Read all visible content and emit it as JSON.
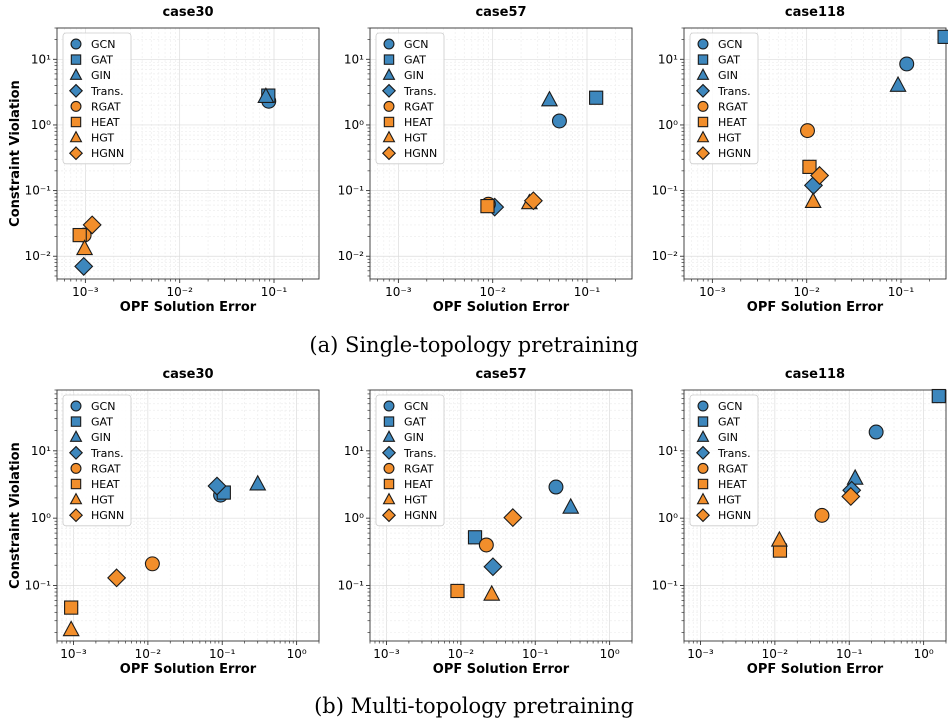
{
  "figure": {
    "caption_a": "(a) Single-topology pretraining",
    "caption_b": "(b) Multi-topology pretraining"
  },
  "colors": {
    "blue": "#3d87bd",
    "orange": "#f28e2b",
    "edge": "#1b1b1b"
  },
  "legend": [
    {
      "name": "GCN",
      "marker": "circle",
      "color": "blue"
    },
    {
      "name": "GAT",
      "marker": "square",
      "color": "blue"
    },
    {
      "name": "GIN",
      "marker": "triangle",
      "color": "blue"
    },
    {
      "name": "Trans.",
      "marker": "diamond",
      "color": "blue"
    },
    {
      "name": "RGAT",
      "marker": "circle",
      "color": "orange"
    },
    {
      "name": "HEAT",
      "marker": "square",
      "color": "orange"
    },
    {
      "name": "HGT",
      "marker": "triangle",
      "color": "orange"
    },
    {
      "name": "HGNN",
      "marker": "diamond",
      "color": "orange"
    }
  ],
  "chart_data": [
    {
      "type": "scatter",
      "group": "a",
      "title": "case30",
      "xlabel": "OPF Solution Error",
      "ylabel": "Constraint Violation",
      "xscale": "log",
      "yscale": "log",
      "xlim": [
        0.0005,
        0.3
      ],
      "ylim": [
        0.0045,
        30
      ],
      "xticks": [
        0.001,
        0.01,
        0.1
      ],
      "xtick_labels": [
        "10⁻³",
        "10⁻²",
        "10⁻¹"
      ],
      "yticks": [
        0.01,
        0.1,
        1,
        10
      ],
      "ytick_labels": [
        "10⁻²",
        "10⁻¹",
        "10⁰",
        "10¹"
      ],
      "legend_position": "top-left",
      "grid": true,
      "points": [
        {
          "name": "GCN",
          "x": 0.088,
          "y": 2.3
        },
        {
          "name": "GAT",
          "x": 0.087,
          "y": 2.8
        },
        {
          "name": "GIN",
          "x": 0.082,
          "y": 2.7
        },
        {
          "name": "Trans.",
          "x": 0.00096,
          "y": 0.007
        },
        {
          "name": "RGAT",
          "x": 0.00097,
          "y": 0.021
        },
        {
          "name": "HEAT",
          "x": 0.00087,
          "y": 0.021
        },
        {
          "name": "HGT",
          "x": 0.00098,
          "y": 0.013
        },
        {
          "name": "HGNN",
          "x": 0.00118,
          "y": 0.03
        }
      ]
    },
    {
      "type": "scatter",
      "group": "a",
      "title": "case57",
      "xlabel": "OPF Solution Error",
      "ylabel": "",
      "xscale": "log",
      "yscale": "log",
      "xlim": [
        0.0005,
        0.3
      ],
      "ylim": [
        0.0045,
        30
      ],
      "xticks": [
        0.001,
        0.01,
        0.1
      ],
      "xtick_labels": [
        "10⁻³",
        "10⁻²",
        "10⁻¹"
      ],
      "yticks": [
        0.01,
        0.1,
        1,
        10
      ],
      "ytick_labels": [
        "10⁻²",
        "10⁻¹",
        "10⁰",
        "10¹"
      ],
      "legend_position": "top-left",
      "grid": true,
      "points": [
        {
          "name": "GCN",
          "x": 0.051,
          "y": 1.15
        },
        {
          "name": "GAT",
          "x": 0.125,
          "y": 2.6
        },
        {
          "name": "GIN",
          "x": 0.04,
          "y": 2.4
        },
        {
          "name": "Trans.",
          "x": 0.0105,
          "y": 0.056
        },
        {
          "name": "RGAT",
          "x": 0.009,
          "y": 0.062
        },
        {
          "name": "HEAT",
          "x": 0.0088,
          "y": 0.058
        },
        {
          "name": "HGT",
          "x": 0.0245,
          "y": 0.065
        },
        {
          "name": "HGNN",
          "x": 0.027,
          "y": 0.07
        }
      ]
    },
    {
      "type": "scatter",
      "group": "a",
      "title": "case118",
      "xlabel": "OPF Solution Error",
      "ylabel": "",
      "xscale": "log",
      "yscale": "log",
      "xlim": [
        0.0005,
        0.3
      ],
      "ylim": [
        0.0045,
        30
      ],
      "xticks": [
        0.001,
        0.01,
        0.1
      ],
      "xtick_labels": [
        "10⁻³",
        "10⁻²",
        "10⁻¹"
      ],
      "yticks": [
        0.01,
        0.1,
        1,
        10
      ],
      "ytick_labels": [
        "10⁻²",
        "10⁻¹",
        "10⁰",
        "10¹"
      ],
      "legend_position": "top-left",
      "grid": true,
      "points": [
        {
          "name": "GCN",
          "x": 0.115,
          "y": 8.5
        },
        {
          "name": "GAT",
          "x": 0.29,
          "y": 22
        },
        {
          "name": "GIN",
          "x": 0.093,
          "y": 4.0
        },
        {
          "name": "Trans.",
          "x": 0.0118,
          "y": 0.12
        },
        {
          "name": "RGAT",
          "x": 0.0102,
          "y": 0.82
        },
        {
          "name": "HEAT",
          "x": 0.0107,
          "y": 0.23
        },
        {
          "name": "HGT",
          "x": 0.0117,
          "y": 0.068
        },
        {
          "name": "HGNN",
          "x": 0.0137,
          "y": 0.17
        }
      ]
    },
    {
      "type": "scatter",
      "group": "b",
      "title": "case30",
      "xlabel": "OPF Solution Error",
      "ylabel": "Constraint Violation",
      "xscale": "log",
      "yscale": "log",
      "xlim": [
        0.0006,
        2
      ],
      "ylim": [
        0.015,
        80
      ],
      "xticks": [
        0.001,
        0.01,
        0.1,
        1
      ],
      "xtick_labels": [
        "10⁻³",
        "10⁻²",
        "10⁻¹",
        "10⁰"
      ],
      "yticks": [
        0.1,
        1,
        10
      ],
      "ytick_labels": [
        "10⁻¹",
        "10⁰",
        "10¹"
      ],
      "legend_position": "top-left",
      "grid": true,
      "points": [
        {
          "name": "GCN",
          "x": 0.095,
          "y": 2.2
        },
        {
          "name": "GAT",
          "x": 0.105,
          "y": 2.4
        },
        {
          "name": "GIN",
          "x": 0.3,
          "y": 3.2
        },
        {
          "name": "Trans.",
          "x": 0.085,
          "y": 3.0
        },
        {
          "name": "RGAT",
          "x": 0.0115,
          "y": 0.21
        },
        {
          "name": "HEAT",
          "x": 0.00093,
          "y": 0.047
        },
        {
          "name": "HGT",
          "x": 0.00093,
          "y": 0.022
        },
        {
          "name": "HGNN",
          "x": 0.0038,
          "y": 0.13
        }
      ]
    },
    {
      "type": "scatter",
      "group": "b",
      "title": "case57",
      "xlabel": "OPF Solution Error",
      "ylabel": "",
      "xscale": "log",
      "yscale": "log",
      "xlim": [
        0.0006,
        2
      ],
      "ylim": [
        0.015,
        80
      ],
      "xticks": [
        0.001,
        0.01,
        0.1,
        1
      ],
      "xtick_labels": [
        "10⁻³",
        "10⁻²",
        "10⁻¹",
        "10⁰"
      ],
      "yticks": [
        0.1,
        1,
        10
      ],
      "ytick_labels": [
        "10⁻¹",
        "10⁰",
        "10¹"
      ],
      "legend_position": "top-left",
      "grid": true,
      "points": [
        {
          "name": "GCN",
          "x": 0.19,
          "y": 2.9
        },
        {
          "name": "GAT",
          "x": 0.0155,
          "y": 0.52
        },
        {
          "name": "GIN",
          "x": 0.3,
          "y": 1.45
        },
        {
          "name": "Trans.",
          "x": 0.027,
          "y": 0.19
        },
        {
          "name": "RGAT",
          "x": 0.022,
          "y": 0.4
        },
        {
          "name": "HEAT",
          "x": 0.009,
          "y": 0.083
        },
        {
          "name": "HGT",
          "x": 0.026,
          "y": 0.074
        },
        {
          "name": "HGNN",
          "x": 0.05,
          "y": 1.02
        }
      ]
    },
    {
      "type": "scatter",
      "group": "b",
      "title": "case118",
      "xlabel": "OPF Solution Error",
      "ylabel": "",
      "xscale": "log",
      "yscale": "log",
      "xlim": [
        0.0006,
        2
      ],
      "ylim": [
        0.015,
        80
      ],
      "xticks": [
        0.001,
        0.01,
        0.1,
        1
      ],
      "xtick_labels": [
        "10⁻³",
        "10⁻²",
        "10⁻¹",
        "10⁰"
      ],
      "yticks": [
        0.1,
        1,
        10
      ],
      "ytick_labels": [
        "10⁻¹",
        "10⁰",
        "10¹"
      ],
      "legend_position": "top-left",
      "grid": true,
      "points": [
        {
          "name": "GCN",
          "x": 0.23,
          "y": 19
        },
        {
          "name": "GAT",
          "x": 1.6,
          "y": 65
        },
        {
          "name": "GIN",
          "x": 0.12,
          "y": 3.9
        },
        {
          "name": "Trans.",
          "x": 0.108,
          "y": 2.6
        },
        {
          "name": "RGAT",
          "x": 0.043,
          "y": 1.1
        },
        {
          "name": "HEAT",
          "x": 0.0117,
          "y": 0.33
        },
        {
          "name": "HGT",
          "x": 0.0115,
          "y": 0.47
        },
        {
          "name": "HGNN",
          "x": 0.105,
          "y": 2.1
        }
      ]
    }
  ]
}
